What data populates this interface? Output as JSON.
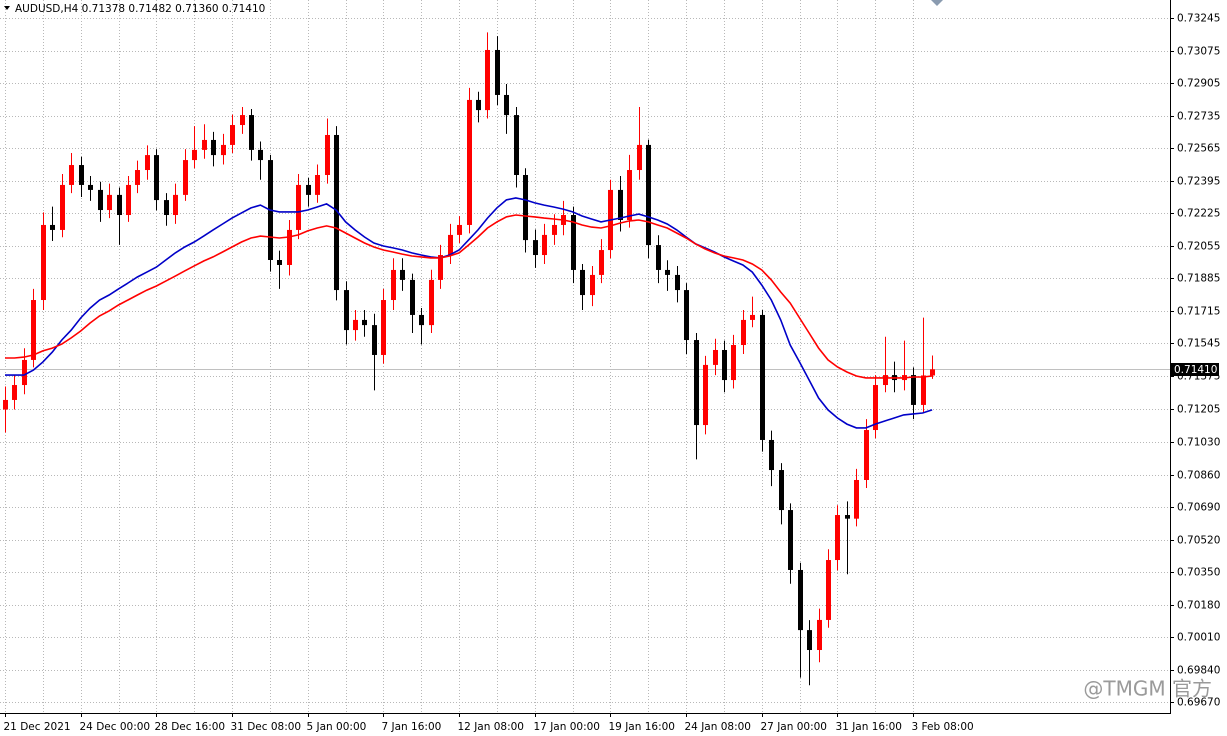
{
  "chart_data": {
    "type": "candlestick",
    "title": "AUDUSD,H4  0.71378 0.71482 0.71360 0.71410",
    "watermark": "@TMGM 官方",
    "up_color": "#ff0000",
    "down_color": "#000000",
    "grid": true,
    "ylim": [
      0.69615,
      0.73339
    ],
    "yticks": [
      0.73245,
      0.73075,
      0.72905,
      0.72735,
      0.72565,
      0.72395,
      0.72225,
      0.72055,
      0.71885,
      0.71715,
      0.71545,
      0.71375,
      0.71205,
      {
        "value": 0.7103,
        "label": "0.71030"
      },
      {
        "value": 0.7086,
        "label": "0.70860"
      },
      {
        "value": 0.7069,
        "label": "0.70690"
      },
      {
        "value": 0.7052,
        "label": "0.70520"
      },
      {
        "value": 0.7035,
        "label": "0.70350"
      },
      {
        "value": 0.7018,
        "label": "0.70180"
      },
      {
        "value": 0.7001,
        "label": "0.70010"
      },
      {
        "value": 0.6984,
        "label": "0.69840"
      },
      {
        "value": 0.6967,
        "label": "0.69670"
      }
    ],
    "last_price": {
      "value": 0.7141,
      "label": "0.71410"
    },
    "categories": [
      "21 Dec 2021",
      null,
      null,
      null,
      null,
      null,
      null,
      null,
      "24 Dec 00:00",
      null,
      null,
      null,
      null,
      null,
      null,
      null,
      "28 Dec 16:00",
      null,
      null,
      null,
      null,
      null,
      null,
      null,
      "31 Dec 08:00",
      null,
      null,
      null,
      null,
      null,
      null,
      null,
      "5 Jan 00:00",
      null,
      null,
      null,
      null,
      null,
      null,
      null,
      "7 Jan 16:00",
      null,
      null,
      null,
      null,
      null,
      null,
      null,
      "12 Jan 08:00",
      null,
      null,
      null,
      null,
      null,
      null,
      null,
      "17 Jan 00:00",
      null,
      null,
      null,
      null,
      null,
      null,
      null,
      "19 Jan 16:00",
      null,
      null,
      null,
      null,
      null,
      null,
      null,
      "24 Jan 08:00",
      null,
      null,
      null,
      null,
      null,
      null,
      null,
      "27 Jan 00:00",
      null,
      null,
      null,
      null,
      null,
      null,
      null,
      "31 Jan 16:00",
      null,
      null,
      null,
      null,
      null,
      null,
      null,
      "3 Feb 08:00",
      null,
      null
    ],
    "open": [
      0.712,
      0.7125,
      0.71328,
      0.71459,
      0.71772,
      0.72164,
      0.72138,
      0.72373,
      0.72477,
      0.72373,
      0.72347,
      0.72242,
      0.72321,
      0.72216,
      0.72373,
      0.72451,
      0.72529,
      0.72294,
      0.72216,
      0.72321,
      0.72503,
      0.72556,
      0.72608,
      0.72529,
      0.72582,
      0.72686,
      0.72738,
      0.72556,
      0.72503,
      0.71981,
      0.71955,
      0.72138,
      0.72373,
      0.72321,
      0.72425,
      0.72634,
      0.71824,
      0.71615,
      0.71668,
      0.71641,
      0.71485,
      0.71772,
      0.71929,
      0.71877,
      0.71694,
      0.71641,
      0.71877,
      0.72007,
      0.72112,
      0.72164,
      0.72817,
      0.72764,
      0.73078,
      0.72843,
      0.72738,
      0.72425,
      0.72085,
      0.72007,
      0.72112,
      0.72164,
      0.72216,
      0.71929,
      0.71798,
      0.71903,
      0.72033,
      0.72347,
      0.7219,
      0.72451,
      0.72582,
      0.72059,
      0.71929,
      0.71903,
      0.71824,
      0.71563,
      0.71119,
      0.71433,
      0.71511,
      0.71354,
      0.71537,
      0.71668,
      0.71694,
      0.71041,
      0.70884,
      0.70675,
      0.70362,
      0.70048,
      0.69944,
      0.70101,
      0.70414,
      0.70649,
      0.7063,
      0.70832,
      0.71093,
      0.71328,
      0.7138,
      0.71354,
      0.7138,
      0.71224,
      0.71378
    ],
    "high": [
      0.7132,
      0.7138,
      0.7152,
      0.7183,
      0.7223,
      0.7226,
      0.7243,
      0.7254,
      0.7252,
      0.7242,
      0.7239,
      0.7238,
      0.7236,
      0.7242,
      0.725,
      0.7258,
      0.7256,
      0.7233,
      0.7238,
      0.7256,
      0.7268,
      0.7269,
      0.7265,
      0.7264,
      0.7274,
      0.7278,
      0.7277,
      0.726,
      0.7253,
      0.7203,
      0.7219,
      0.7243,
      0.7241,
      0.7248,
      0.7272,
      0.7268,
      0.7187,
      0.7172,
      0.7172,
      0.717,
      0.7183,
      0.7199,
      0.7199,
      0.7191,
      0.7173,
      0.7193,
      0.7206,
      0.7217,
      0.7221,
      0.7288,
      0.7286,
      0.7317,
      0.7315,
      0.729,
      0.7278,
      0.7246,
      0.7214,
      0.7217,
      0.7222,
      0.7229,
      0.7226,
      0.7196,
      0.7195,
      0.7209,
      0.724,
      0.7242,
      0.7253,
      0.7278,
      0.7261,
      0.7211,
      0.7198,
      0.7195,
      0.7186,
      0.716,
      0.7148,
      0.7157,
      0.7156,
      0.7159,
      0.7172,
      0.7179,
      0.7172,
      0.7109,
      0.7092,
      0.7071,
      0.704,
      0.701,
      0.7016,
      0.7047,
      0.707,
      0.7072,
      0.7089,
      0.7115,
      0.7138,
      0.7158,
      0.7145,
      0.7156,
      0.7142,
      0.7168,
      0.71482
    ],
    "low": [
      0.7108,
      0.712,
      0.7128,
      0.7142,
      0.7172,
      0.7208,
      0.721,
      0.7233,
      0.7231,
      0.7229,
      0.7218,
      0.722,
      0.7206,
      0.7218,
      0.7233,
      0.724,
      0.7224,
      0.7216,
      0.7217,
      0.7229,
      0.7246,
      0.7251,
      0.7247,
      0.7248,
      0.7254,
      0.7264,
      0.725,
      0.724,
      0.7192,
      0.7183,
      0.719,
      0.7209,
      0.7226,
      0.7228,
      0.7238,
      0.7177,
      0.7154,
      0.7156,
      0.7158,
      0.713,
      0.7144,
      0.7172,
      0.7182,
      0.716,
      0.7154,
      0.716,
      0.7183,
      0.7196,
      0.7207,
      0.7212,
      0.727,
      0.7272,
      0.7279,
      0.7264,
      0.7236,
      0.7202,
      0.7194,
      0.7196,
      0.7206,
      0.7211,
      0.7186,
      0.7172,
      0.7174,
      0.7186,
      0.7199,
      0.7213,
      0.7215,
      0.724,
      0.7199,
      0.7186,
      0.7182,
      0.7176,
      0.7149,
      0.7094,
      0.7107,
      0.7138,
      0.7129,
      0.7131,
      0.7149,
      0.7163,
      0.7098,
      0.708,
      0.706,
      0.7029,
      0.698,
      0.6976,
      0.6988,
      0.7006,
      0.7036,
      0.7034,
      0.7059,
      0.7079,
      0.7105,
      0.7129,
      0.7129,
      0.713,
      0.7115,
      0.7118,
      0.7136
    ],
    "close": [
      0.7125,
      0.71328,
      0.71459,
      0.71772,
      0.72164,
      0.72138,
      0.72373,
      0.72477,
      0.72373,
      0.72347,
      0.72242,
      0.72321,
      0.72216,
      0.72373,
      0.72451,
      0.72529,
      0.72294,
      0.72216,
      0.72321,
      0.72503,
      0.72556,
      0.72608,
      0.72529,
      0.72582,
      0.72686,
      0.72738,
      0.72556,
      0.72503,
      0.71981,
      0.71955,
      0.72138,
      0.72373,
      0.72321,
      0.72425,
      0.72634,
      0.71824,
      0.71615,
      0.71668,
      0.71641,
      0.71485,
      0.71772,
      0.71929,
      0.71877,
      0.71694,
      0.71641,
      0.71877,
      0.72007,
      0.72112,
      0.72164,
      0.72817,
      0.72764,
      0.73078,
      0.72843,
      0.72738,
      0.72425,
      0.72085,
      0.72007,
      0.72112,
      0.72164,
      0.72216,
      0.71929,
      0.71798,
      0.71903,
      0.72033,
      0.72347,
      0.7219,
      0.72451,
      0.72582,
      0.72059,
      0.71929,
      0.71903,
      0.71824,
      0.71563,
      0.71119,
      0.71433,
      0.71511,
      0.71354,
      0.71537,
      0.71668,
      0.71694,
      0.71041,
      0.70884,
      0.70675,
      0.70362,
      0.70048,
      0.69944,
      0.70101,
      0.70414,
      0.70649,
      0.7063,
      0.70832,
      0.71093,
      0.71328,
      0.7138,
      0.71354,
      0.7138,
      0.71224,
      0.71378,
      0.7141
    ],
    "lines": [
      {
        "color": "#0000c8",
        "values": [
          0.7138,
          0.7138,
          0.7138,
          0.71406,
          0.71448,
          0.715,
          0.71563,
          0.71615,
          0.71678,
          0.7173,
          0.71772,
          0.71798,
          0.7183,
          0.71861,
          0.71892,
          0.71918,
          0.71944,
          0.71981,
          0.72018,
          0.72049,
          0.72075,
          0.72106,
          0.72138,
          0.72169,
          0.722,
          0.72227,
          0.72253,
          0.72268,
          0.72242,
          0.72232,
          0.72232,
          0.72232,
          0.72242,
          0.72258,
          0.72274,
          0.72242,
          0.7218,
          0.72138,
          0.72101,
          0.7207,
          0.72054,
          0.72044,
          0.72033,
          0.72018,
          0.72007,
          0.71997,
          0.71992,
          0.72007,
          0.72033,
          0.72085,
          0.72138,
          0.722,
          0.72253,
          0.72295,
          0.72305,
          0.72295,
          0.72279,
          0.72268,
          0.72258,
          0.72247,
          0.72232,
          0.72211,
          0.72195,
          0.7218,
          0.7219,
          0.722,
          0.72211,
          0.72221,
          0.72206,
          0.7219,
          0.72169,
          0.72138,
          0.72101,
          0.72065,
          0.72044,
          0.72023,
          0.71997,
          0.71976,
          0.71955,
          0.71918,
          0.7185,
          0.71772,
          0.71668,
          0.71537,
          0.71448,
          0.71354,
          0.7126,
          0.71198,
          0.71156,
          0.71124,
          0.71104,
          0.71104,
          0.71124,
          0.7114,
          0.71156,
          0.71172,
          0.71177,
          0.71182,
          0.71198
        ]
      },
      {
        "color": "#ff0000",
        "values": [
          0.71469,
          0.71469,
          0.71474,
          0.71485,
          0.71506,
          0.71521,
          0.71542,
          0.71574,
          0.7161,
          0.71652,
          0.71689,
          0.71715,
          0.71746,
          0.71772,
          0.71798,
          0.71824,
          0.71845,
          0.71871,
          0.71897,
          0.71924,
          0.7195,
          0.71976,
          0.71997,
          0.72023,
          0.72049,
          0.72075,
          0.72096,
          0.72106,
          0.72101,
          0.72096,
          0.72101,
          0.72112,
          0.72133,
          0.72148,
          0.72159,
          0.72148,
          0.72122,
          0.72096,
          0.7207,
          0.72049,
          0.72033,
          0.72023,
          0.72012,
          0.72002,
          0.71997,
          0.71992,
          0.71992,
          0.72002,
          0.72018,
          0.72059,
          0.72101,
          0.72148,
          0.7218,
          0.72206,
          0.72216,
          0.72211,
          0.72206,
          0.722,
          0.72195,
          0.7219,
          0.7218,
          0.72164,
          0.72153,
          0.72148,
          0.72159,
          0.72174,
          0.72185,
          0.7219,
          0.7218,
          0.72164,
          0.72148,
          0.72122,
          0.72096,
          0.72065,
          0.72039,
          0.72018,
          0.72002,
          0.71992,
          0.71981,
          0.7196,
          0.71929,
          0.71877,
          0.71814,
          0.71756,
          0.71678,
          0.716,
          0.71521,
          0.71459,
          0.71422,
          0.71396,
          0.71375,
          0.71365,
          0.71365,
          0.71365,
          0.71365,
          0.71365,
          0.7137,
          0.7137,
          0.71375
        ]
      }
    ]
  }
}
